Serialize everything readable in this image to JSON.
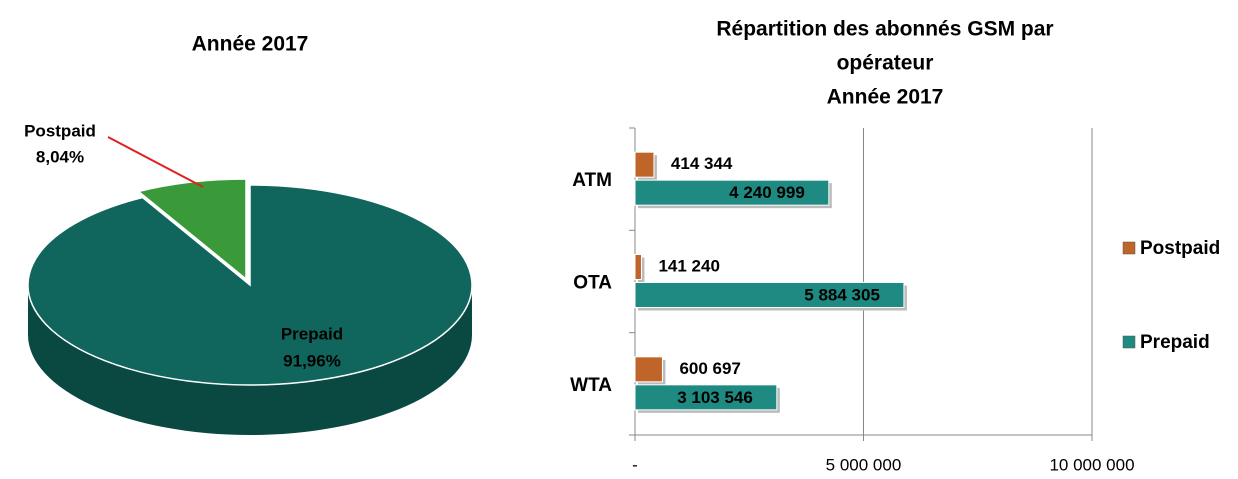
{
  "chart_data": [
    {
      "type": "pie",
      "title": "Année 2017",
      "categories": [
        "Postpaid",
        "Prepaid"
      ],
      "values": [
        8.04,
        91.96
      ],
      "value_labels": [
        "8,04%",
        "91,96%"
      ],
      "colors": [
        "#3a9a3a",
        "#10665c"
      ]
    },
    {
      "type": "bar",
      "orientation": "horizontal",
      "title": [
        "Répartition des abonnés GSM par",
        "opérateur",
        "Année 2017"
      ],
      "categories": [
        "ATM",
        "OTA",
        "WTA"
      ],
      "series": [
        {
          "name": "Postpaid",
          "color": "#c0652a",
          "values": [
            414344,
            141240,
            600697
          ],
          "value_labels": [
            "414 344",
            "141 240",
            "600 697"
          ]
        },
        {
          "name": "Prepaid",
          "color": "#1e8a82",
          "values": [
            4240999,
            5884305,
            3103546
          ],
          "value_labels": [
            "4 240 999",
            "5 884 305",
            "3 103 546"
          ]
        }
      ],
      "xlim": [
        0,
        10000000
      ],
      "xticks": [
        {
          "value": 0,
          "label": "-"
        },
        {
          "value": 5000000,
          "label": "5 000 000"
        },
        {
          "value": 10000000,
          "label": "10 000 000"
        }
      ],
      "grid": true,
      "legend": "right"
    }
  ]
}
